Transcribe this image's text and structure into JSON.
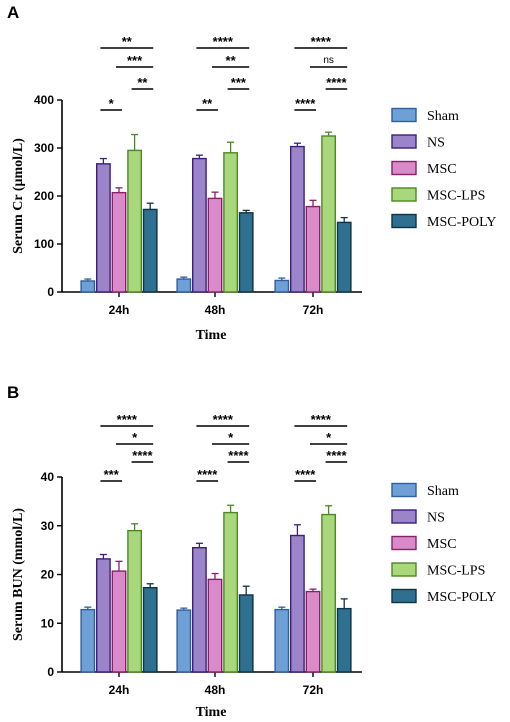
{
  "colors": {
    "Sham": {
      "fill": "#6e9fd6",
      "stroke": "#2f5f9e"
    },
    "NS": {
      "fill": "#9b84c9",
      "stroke": "#3c1f7a"
    },
    "MSC": {
      "fill": "#d98ac8",
      "stroke": "#8a1f6b"
    },
    "MSC-LPS": {
      "fill": "#a9d77c",
      "stroke": "#4a8a22"
    },
    "MSC-POLY": {
      "fill": "#2f6f8f",
      "stroke": "#0f3347"
    }
  },
  "chart_data": [
    {
      "panel": "A",
      "type": "bar",
      "categories": [
        "24h",
        "48h",
        "72h"
      ],
      "xlabel": "Time",
      "ylabel": "Serum Cr (μmol/L)",
      "ylim": [
        0,
        400
      ],
      "yticks": [
        0,
        100,
        200,
        300,
        400
      ],
      "legend_position": "right",
      "series": [
        {
          "name": "Sham",
          "values": [
            23,
            27,
            24
          ],
          "errors": [
            4,
            4,
            5
          ]
        },
        {
          "name": "NS",
          "values": [
            267,
            278,
            303
          ],
          "errors": [
            11,
            7,
            7
          ]
        },
        {
          "name": "MSC",
          "values": [
            207,
            195,
            178
          ],
          "errors": [
            10,
            13,
            13
          ]
        },
        {
          "name": "MSC-LPS",
          "values": [
            295,
            290,
            325
          ],
          "errors": [
            33,
            22,
            8
          ]
        },
        {
          "name": "MSC-POLY",
          "values": [
            172,
            165,
            145
          ],
          "errors": [
            13,
            5,
            10
          ]
        }
      ],
      "significance": [
        [
          {
            "text": "**",
            "from": "NS",
            "to": "MSC-POLY"
          },
          {
            "text": "***",
            "from": "MSC",
            "to": "MSC-POLY"
          },
          {
            "text": "**",
            "from": "MSC-LPS",
            "to": "MSC-POLY"
          },
          {
            "text": "*",
            "from": "NS",
            "to": "MSC"
          }
        ],
        [
          {
            "text": "****",
            "from": "NS",
            "to": "MSC-POLY"
          },
          {
            "text": "**",
            "from": "MSC",
            "to": "MSC-POLY"
          },
          {
            "text": "***",
            "from": "MSC-LPS",
            "to": "MSC-POLY"
          },
          {
            "text": "**",
            "from": "NS",
            "to": "MSC"
          }
        ],
        [
          {
            "text": "****",
            "from": "NS",
            "to": "MSC-POLY"
          },
          {
            "text": "ns",
            "from": "MSC",
            "to": "MSC-POLY"
          },
          {
            "text": "****",
            "from": "MSC-LPS",
            "to": "MSC-POLY"
          },
          {
            "text": "****",
            "from": "NS",
            "to": "MSC"
          }
        ]
      ]
    },
    {
      "panel": "B",
      "type": "bar",
      "categories": [
        "24h",
        "48h",
        "72h"
      ],
      "xlabel": "Time",
      "ylabel": "Serum BUN (mmol/L)",
      "ylim": [
        0,
        40
      ],
      "yticks": [
        0,
        10,
        20,
        30,
        40
      ],
      "legend_position": "right",
      "series": [
        {
          "name": "Sham",
          "values": [
            12.8,
            12.7,
            12.8
          ],
          "errors": [
            0.5,
            0.4,
            0.5
          ]
        },
        {
          "name": "NS",
          "values": [
            23.2,
            25.5,
            28.0
          ],
          "errors": [
            0.9,
            0.9,
            2.2
          ]
        },
        {
          "name": "MSC",
          "values": [
            20.7,
            19.0,
            16.5
          ],
          "errors": [
            2.0,
            1.2,
            0.5
          ]
        },
        {
          "name": "MSC-LPS",
          "values": [
            29.0,
            32.7,
            32.3
          ],
          "errors": [
            1.4,
            1.5,
            1.8
          ]
        },
        {
          "name": "MSC-POLY",
          "values": [
            17.3,
            15.8,
            13.0
          ],
          "errors": [
            0.8,
            1.8,
            2.0
          ]
        }
      ],
      "significance": [
        [
          {
            "text": "****",
            "from": "NS",
            "to": "MSC-POLY"
          },
          {
            "text": "*",
            "from": "MSC",
            "to": "MSC-POLY"
          },
          {
            "text": "****",
            "from": "MSC-LPS",
            "to": "MSC-POLY"
          },
          {
            "text": "***",
            "from": "NS",
            "to": "MSC"
          }
        ],
        [
          {
            "text": "****",
            "from": "NS",
            "to": "MSC-POLY"
          },
          {
            "text": "*",
            "from": "MSC",
            "to": "MSC-POLY"
          },
          {
            "text": "****",
            "from": "MSC-LPS",
            "to": "MSC-POLY"
          },
          {
            "text": "****",
            "from": "NS",
            "to": "MSC"
          }
        ],
        [
          {
            "text": "****",
            "from": "NS",
            "to": "MSC-POLY"
          },
          {
            "text": "*",
            "from": "MSC",
            "to": "MSC-POLY"
          },
          {
            "text": "****",
            "from": "MSC-LPS",
            "to": "MSC-POLY"
          },
          {
            "text": "****",
            "from": "NS",
            "to": "MSC"
          }
        ]
      ]
    }
  ]
}
